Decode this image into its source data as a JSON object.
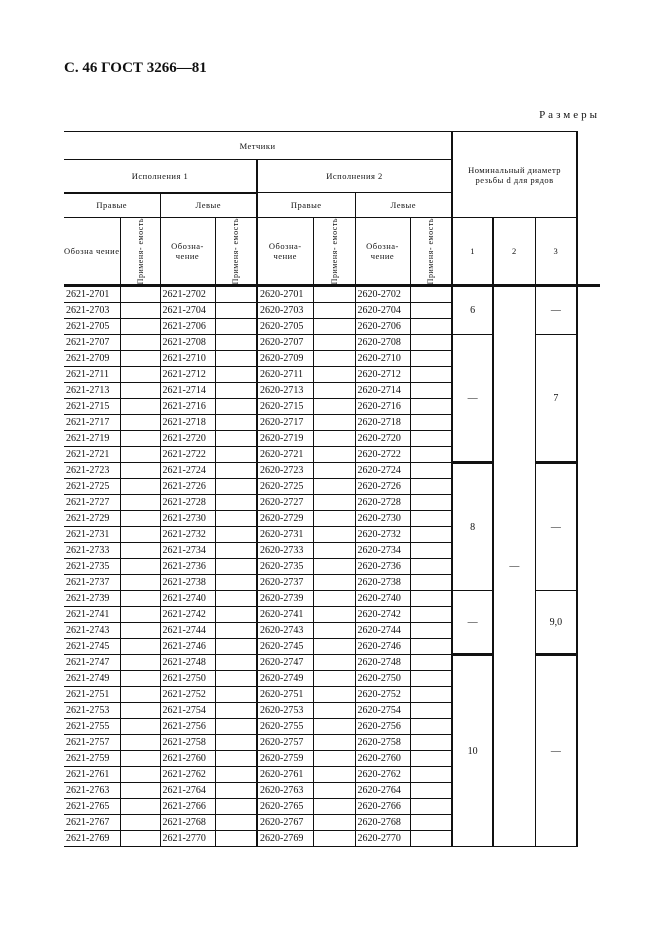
{
  "page_header": "С. 46 ГОСТ 3266—81",
  "section_label": "Размеры",
  "table": {
    "header": {
      "taps": "Метчики",
      "version1": "Исполнения 1",
      "version2": "Исполнения 2",
      "right": "Правые",
      "left": "Левые",
      "designation1": "Обозна чение",
      "designation2": "Обозна- чение",
      "applicability": "Применя- емость",
      "nominal_diameter": "Номинальный диаметр резьбы d для рядов",
      "rows_labels": [
        "1",
        "2",
        "3"
      ]
    },
    "rows": [
      [
        "2621-2701",
        "2621-2702",
        "2620-2701",
        "2620-2702"
      ],
      [
        "2621-2703",
        "2621-2704",
        "2620-2703",
        "2620-2704"
      ],
      [
        "2621-2705",
        "2621-2706",
        "2620-2705",
        "2620-2706"
      ],
      [
        "2621-2707",
        "2621-2708",
        "2620-2707",
        "2620-2708"
      ],
      [
        "2621-2709",
        "2621-2710",
        "2620-2709",
        "2620-2710"
      ],
      [
        "2621-2711",
        "2621-2712",
        "2620-2711",
        "2620-2712"
      ],
      [
        "2621-2713",
        "2621-2714",
        "2620-2713",
        "2620-2714"
      ],
      [
        "2621-2715",
        "2621-2716",
        "2620-2715",
        "2620-2716"
      ],
      [
        "2621-2717",
        "2621-2718",
        "2620-2717",
        "2620-2718"
      ],
      [
        "2621-2719",
        "2621-2720",
        "2620-2719",
        "2620-2720"
      ],
      [
        "2621-2721",
        "2621-2722",
        "2620-2721",
        "2620-2722"
      ],
      [
        "2621-2723",
        "2621-2724",
        "2620-2723",
        "2620-2724"
      ],
      [
        "2621-2725",
        "2621-2726",
        "2620-2725",
        "2620-2726"
      ],
      [
        "2621-2727",
        "2621-2728",
        "2620-2727",
        "2620-2728"
      ],
      [
        "2621-2729",
        "2621-2730",
        "2620-2729",
        "2620-2730"
      ],
      [
        "2621-2731",
        "2621-2732",
        "2620-2731",
        "2620-2732"
      ],
      [
        "2621-2733",
        "2621-2734",
        "2620-2733",
        "2620-2734"
      ],
      [
        "2621-2735",
        "2621-2736",
        "2620-2735",
        "2620-2736"
      ],
      [
        "2621-2737",
        "2621-2738",
        "2620-2737",
        "2620-2738"
      ],
      [
        "2621-2739",
        "2621-2740",
        "2620-2739",
        "2620-2740"
      ],
      [
        "2621-2741",
        "2621-2742",
        "2620-2741",
        "2620-2742"
      ],
      [
        "2621-2743",
        "2621-2744",
        "2620-2743",
        "2620-2744"
      ],
      [
        "2621-2745",
        "2621-2746",
        "2620-2745",
        "2620-2746"
      ],
      [
        "2621-2747",
        "2621-2748",
        "2620-2747",
        "2620-2748"
      ],
      [
        "2621-2749",
        "2621-2750",
        "2620-2749",
        "2620-2750"
      ],
      [
        "2621-2751",
        "2621-2752",
        "2620-2751",
        "2620-2752"
      ],
      [
        "2621-2753",
        "2621-2754",
        "2620-2753",
        "2620-2754"
      ],
      [
        "2621-2755",
        "2621-2756",
        "2620-2755",
        "2620-2756"
      ],
      [
        "2621-2757",
        "2621-2758",
        "2620-2757",
        "2620-2758"
      ],
      [
        "2621-2759",
        "2621-2760",
        "2620-2759",
        "2620-2760"
      ],
      [
        "2621-2761",
        "2621-2762",
        "2620-2761",
        "2620-2762"
      ],
      [
        "2621-2763",
        "2621-2764",
        "2620-2763",
        "2620-2764"
      ],
      [
        "2621-2765",
        "2621-2766",
        "2620-2765",
        "2620-2766"
      ],
      [
        "2621-2767",
        "2621-2768",
        "2620-2767",
        "2620-2768"
      ],
      [
        "2621-2769",
        "2621-2770",
        "2620-2769",
        "2620-2770"
      ]
    ],
    "series1_groups": [
      {
        "rows": 3,
        "value": "6"
      },
      {
        "rows": 8,
        "value": "—"
      },
      {
        "rows": 8,
        "value": "8"
      },
      {
        "rows": 4,
        "value": "—"
      },
      {
        "rows": 12,
        "value": "10"
      }
    ],
    "series2_groups": [
      {
        "rows": 35,
        "value": "—"
      }
    ],
    "series3_groups": [
      {
        "rows": 3,
        "value": "—"
      },
      {
        "rows": 8,
        "value": "7"
      },
      {
        "rows": 8,
        "value": "—"
      },
      {
        "rows": 4,
        "value": "9,0"
      },
      {
        "rows": 12,
        "value": "—"
      }
    ]
  }
}
